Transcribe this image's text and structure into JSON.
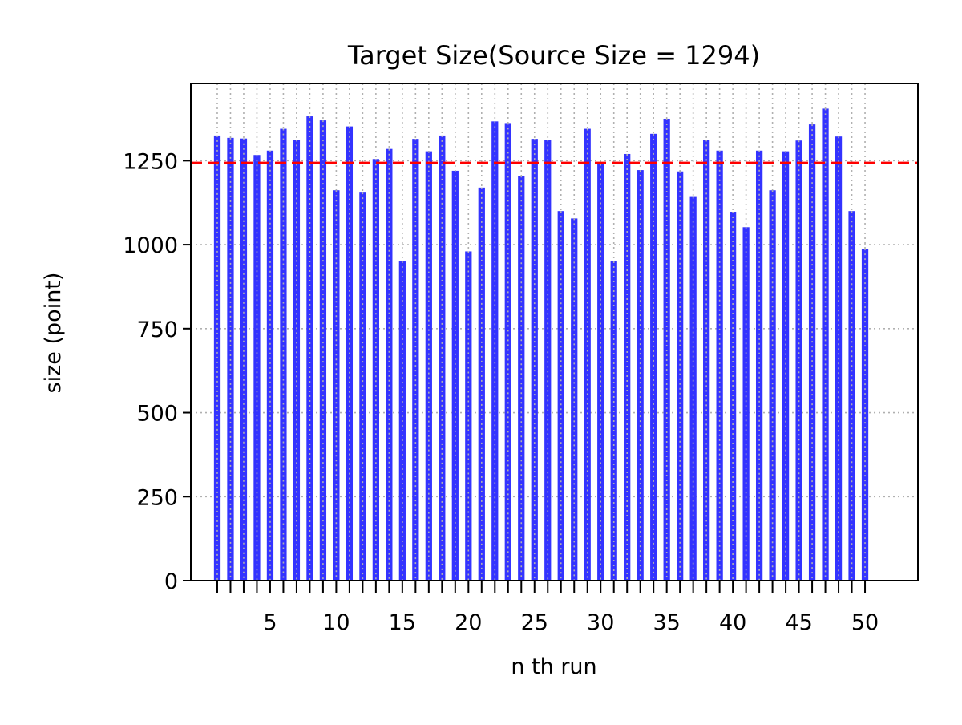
{
  "chart_data": {
    "type": "bar",
    "title": "Target Size(Source Size = 1294)",
    "xlabel": "n th run",
    "ylabel": "size (point)",
    "x": [
      1,
      2,
      3,
      4,
      5,
      6,
      7,
      8,
      9,
      10,
      11,
      12,
      13,
      14,
      15,
      16,
      17,
      18,
      19,
      20,
      21,
      22,
      23,
      24,
      25,
      26,
      27,
      28,
      29,
      30,
      31,
      32,
      33,
      34,
      35,
      36,
      37,
      38,
      39,
      40,
      41,
      42,
      43,
      44,
      45,
      46,
      47,
      48,
      49,
      50
    ],
    "values": [
      1325,
      1318,
      1316,
      1267,
      1280,
      1345,
      1312,
      1382,
      1370,
      1162,
      1352,
      1155,
      1255,
      1285,
      950,
      1315,
      1278,
      1325,
      1220,
      980,
      1170,
      1367,
      1362,
      1205,
      1315,
      1312,
      1100,
      1078,
      1345,
      1240,
      950,
      1270,
      1222,
      1330,
      1375,
      1218,
      1142,
      1312,
      1280,
      1098,
      1052,
      1280,
      1162,
      1278,
      1310,
      1358,
      1405,
      1322,
      1100,
      988
    ],
    "reference_line": 1243,
    "xlim": [
      -1,
      54
    ],
    "ylim": [
      0,
      1480
    ],
    "xticks": [
      "5",
      "10",
      "15",
      "20",
      "25",
      "30",
      "35",
      "40",
      "45",
      "50"
    ],
    "yticks": [
      "0",
      "250",
      "500",
      "750",
      "1000",
      "1250"
    ],
    "grid": true,
    "colors": {
      "bar": "#3333ff",
      "reference": "#ff0000",
      "grid": "#b0b0b0"
    }
  }
}
